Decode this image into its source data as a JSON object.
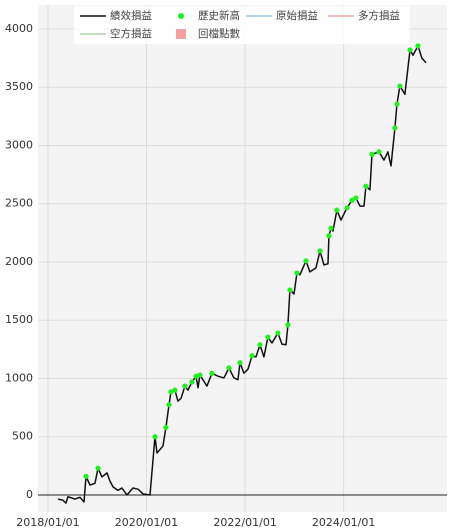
{
  "chart_data": {
    "type": "line",
    "x": [
      "2018/03/16",
      "2018/04/22",
      "2018/05/14",
      "2018/05/29",
      "2018/07/20",
      "2018/08/26",
      "2018/09/25",
      "2018/10/10",
      "2018/11/08",
      "2018/12/15",
      "2019/01/07",
      "2019/02/05",
      "2019/03/14",
      "2019/04/05",
      "2019/04/28",
      "2019/06/04",
      "2019/07/03",
      "2019/08/09",
      "2019/09/23",
      "2019/10/30",
      "2019/12/06",
      "2020/01/27",
      "2020/03/04",
      "2020/03/19",
      "2020/05/02",
      "2020/05/24",
      "2020/06/16",
      "2020/06/30",
      "2020/07/30",
      "2020/08/21",
      "2020/09/13",
      "2020/10/12",
      "2020/11/03",
      "2020/12/03",
      "2021/01/02",
      "2021/01/17",
      "2021/01/31",
      "2021/03/24",
      "2021/04/30",
      "2021/06/14",
      "2021/07/28",
      "2021/09/03",
      "2021/10/10",
      "2021/11/09",
      "2021/11/24",
      "2021/12/23",
      "2022/01/22",
      "2022/02/21",
      "2022/03/22",
      "2022/04/21",
      "2022/05/20",
      "2022/06/19",
      "2022/07/19",
      "2022/09/01",
      "2022/10/01",
      "2022/10/31",
      "2022/11/14",
      "2022/11/29",
      "2022/12/29",
      "2023/01/20",
      "2023/02/11",
      "2023/03/28",
      "2023/04/26",
      "2023/06/10",
      "2023/07/10",
      "2023/08/08",
      "2023/09/07",
      "2023/09/14",
      "2023/09/29",
      "2023/10/14",
      "2023/11/12",
      "2023/12/12",
      "2024/01/26",
      "2024/03/03",
      "2024/04/01",
      "2024/05/01",
      "2024/05/31",
      "2024/06/14",
      "2024/07/14",
      "2024/07/29",
      "2024/09/19",
      "2024/10/26",
      "2024/11/24",
      "2024/12/17",
      "2025/01/15",
      "2025/01/30",
      "2025/02/21",
      "2025/03/30",
      "2025/05/07",
      "2025/05/29",
      "2025/07/05",
      "2025/08/03",
      "2025/09/02"
    ],
    "series": [
      {
        "name": "績效損益",
        "color": "#111111",
        "style": "line",
        "values": [
          -35,
          -45,
          -70,
          -15,
          -35,
          -20,
          -60,
          160,
          85,
          100,
          230,
          155,
          190,
          120,
          70,
          40,
          60,
          0,
          60,
          50,
          10,
          0,
          500,
          360,
          420,
          580,
          775,
          885,
          900,
          805,
          830,
          935,
          900,
          970,
          1020,
          920,
          1030,
          935,
          1045,
          1020,
          1005,
          1090,
          1005,
          990,
          1135,
          1045,
          1080,
          1195,
          1185,
          1290,
          1185,
          1355,
          1305,
          1390,
          1295,
          1290,
          1460,
          1760,
          1725,
          1905,
          1890,
          2010,
          1915,
          1950,
          2095,
          1975,
          1985,
          2225,
          2290,
          2265,
          2445,
          2360,
          2465,
          2530,
          2550,
          2480,
          2480,
          2650,
          2620,
          2925,
          2945,
          2875,
          2945,
          2825,
          3150,
          3355,
          3510,
          3440,
          3820,
          3775,
          3855,
          3750,
          3710
        ]
      },
      {
        "name": "歷史新高",
        "color": "#22ee22",
        "style": "marker",
        "values": [
          null,
          null,
          null,
          null,
          null,
          null,
          null,
          160,
          null,
          null,
          230,
          null,
          null,
          null,
          null,
          null,
          null,
          null,
          null,
          null,
          null,
          null,
          500,
          null,
          null,
          580,
          775,
          885,
          900,
          null,
          null,
          935,
          null,
          970,
          1020,
          null,
          1030,
          null,
          1045,
          null,
          null,
          1090,
          null,
          null,
          1135,
          null,
          null,
          1195,
          null,
          1290,
          null,
          1355,
          null,
          1390,
          null,
          null,
          1460,
          1760,
          null,
          1905,
          null,
          2010,
          null,
          null,
          2095,
          null,
          null,
          2225,
          2290,
          null,
          2445,
          null,
          2465,
          2530,
          2550,
          null,
          null,
          2650,
          null,
          2925,
          2945,
          null,
          null,
          null,
          3150,
          3355,
          3510,
          null,
          3820,
          null,
          3855,
          null,
          null
        ]
      },
      {
        "name": "原始損益",
        "color": "#9ec6e8",
        "style": "line"
      },
      {
        "name": "多方損益",
        "color": "#f2a3a3",
        "style": "line"
      },
      {
        "name": "空方損益",
        "color": "#a9d9a9",
        "style": "line"
      },
      {
        "name": "回檔點數",
        "color": "#f4a0a0",
        "style": "square"
      }
    ],
    "xlim": [
      "2017/10/19",
      "2026/02/05"
    ],
    "xticks": [
      "2018/01/01",
      "2020/01/01",
      "2022/01/01",
      "2024/01/01"
    ],
    "ylim": [
      -146,
      4206
    ],
    "yticks": [
      0,
      500,
      1000,
      1500,
      2000,
      2500,
      3000,
      3500,
      4000
    ],
    "grid": true
  }
}
